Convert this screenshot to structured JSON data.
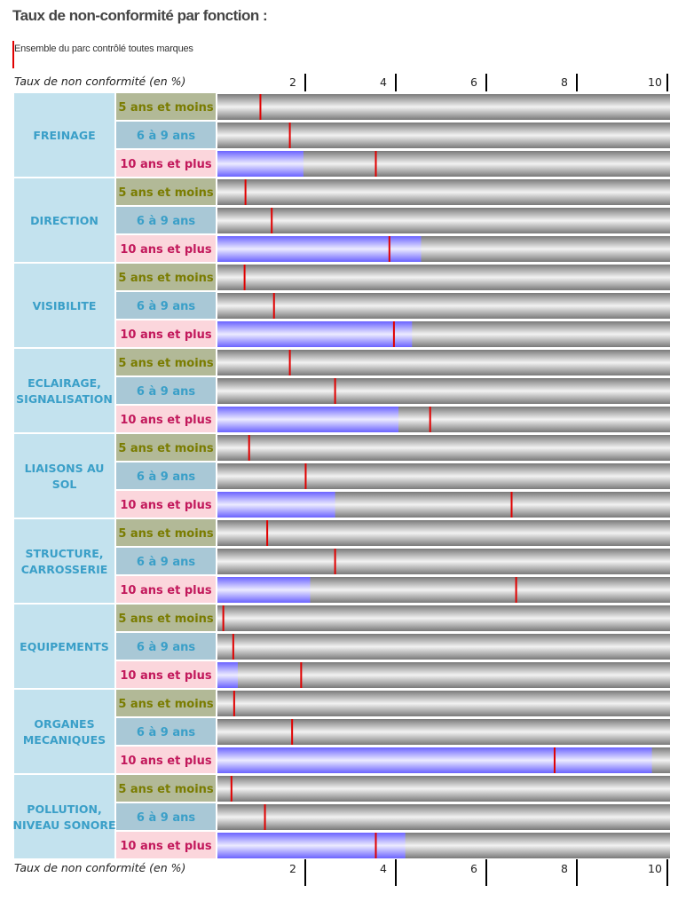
{
  "title": "Taux de non-conformité par fonction :",
  "legend": {
    "label": "Ensemble du parc contrôlé toutes marques",
    "color": "#e00000"
  },
  "axis_label": "Taux de non conformité (en %)",
  "colors": {
    "group_bg": "#c3e2ee",
    "group_text": "#3a9fc8",
    "age_5_bg": "#b2b997",
    "age_5_text": "#7a7c00",
    "age_6_9_bg": "#a9c8d6",
    "age_6_9_text": "#3a9fc8",
    "age_10_bg": "#fbd6dc",
    "age_10_text": "#c2185b",
    "track": "#8c8c8c",
    "fill": "#8a85ff",
    "reference": "#e00000"
  },
  "chart_data": {
    "type": "bar",
    "orientation": "horizontal",
    "xlim": [
      0,
      10
    ],
    "ticks": [
      "2",
      "4",
      "6",
      "8",
      "10"
    ],
    "age_classes": [
      "5 ans et moins",
      "6 à 9 ans",
      "10 ans et plus"
    ],
    "groups": [
      {
        "label": "FREINAGE",
        "values": [
          null,
          null,
          1.9
        ],
        "reference": [
          0.95,
          1.6,
          3.5
        ]
      },
      {
        "label": "DIRECTION",
        "values": [
          null,
          null,
          4.5
        ],
        "reference": [
          0.62,
          1.2,
          3.8
        ]
      },
      {
        "label": "VISIBILITE",
        "values": [
          null,
          null,
          4.3
        ],
        "reference": [
          0.6,
          1.25,
          3.9
        ]
      },
      {
        "label": "ECLAIRAGE, SIGNALISATION",
        "values": [
          null,
          null,
          4.0
        ],
        "reference": [
          1.6,
          2.6,
          4.7
        ]
      },
      {
        "label": "LIAISONS AU SOL",
        "values": [
          null,
          null,
          2.6
        ],
        "reference": [
          0.7,
          1.95,
          6.5
        ]
      },
      {
        "label": "STRUCTURE, CARROSSERIE",
        "values": [
          null,
          null,
          2.05
        ],
        "reference": [
          1.1,
          2.6,
          6.6
        ]
      },
      {
        "label": "EQUIPEMENTS",
        "values": [
          null,
          null,
          0.45
        ],
        "reference": [
          0.13,
          0.35,
          1.85
        ]
      },
      {
        "label": "ORGANES MECANIQUES",
        "values": [
          null,
          null,
          9.6
        ],
        "reference": [
          0.37,
          1.65,
          7.45
        ]
      },
      {
        "label": "POLLUTION, NIVEAU SONORE",
        "values": [
          null,
          null,
          4.15
        ],
        "reference": [
          0.31,
          1.05,
          3.5
        ]
      }
    ]
  }
}
